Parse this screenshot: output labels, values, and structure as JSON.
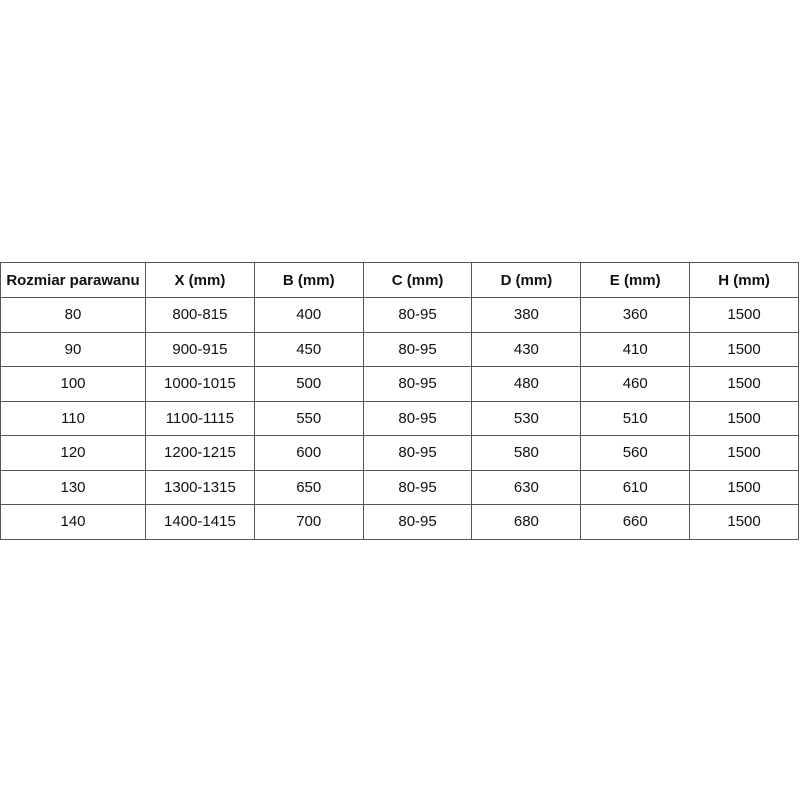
{
  "table": {
    "headers": [
      "Rozmiar parawanu",
      "X (mm)",
      "B (mm)",
      "C (mm)",
      "D (mm)",
      "E (mm)",
      "H (mm)"
    ],
    "rows": [
      [
        "80",
        "800-815",
        "400",
        "80-95",
        "380",
        "360",
        "1500"
      ],
      [
        "90",
        "900-915",
        "450",
        "80-95",
        "430",
        "410",
        "1500"
      ],
      [
        "100",
        "1000-1015",
        "500",
        "80-95",
        "480",
        "460",
        "1500"
      ],
      [
        "110",
        "1100-1115",
        "550",
        "80-95",
        "530",
        "510",
        "1500"
      ],
      [
        "120",
        "1200-1215",
        "600",
        "80-95",
        "580",
        "560",
        "1500"
      ],
      [
        "130",
        "1300-1315",
        "650",
        "80-95",
        "630",
        "610",
        "1500"
      ],
      [
        "140",
        "1400-1415",
        "700",
        "80-95",
        "680",
        "660",
        "1500"
      ]
    ]
  }
}
